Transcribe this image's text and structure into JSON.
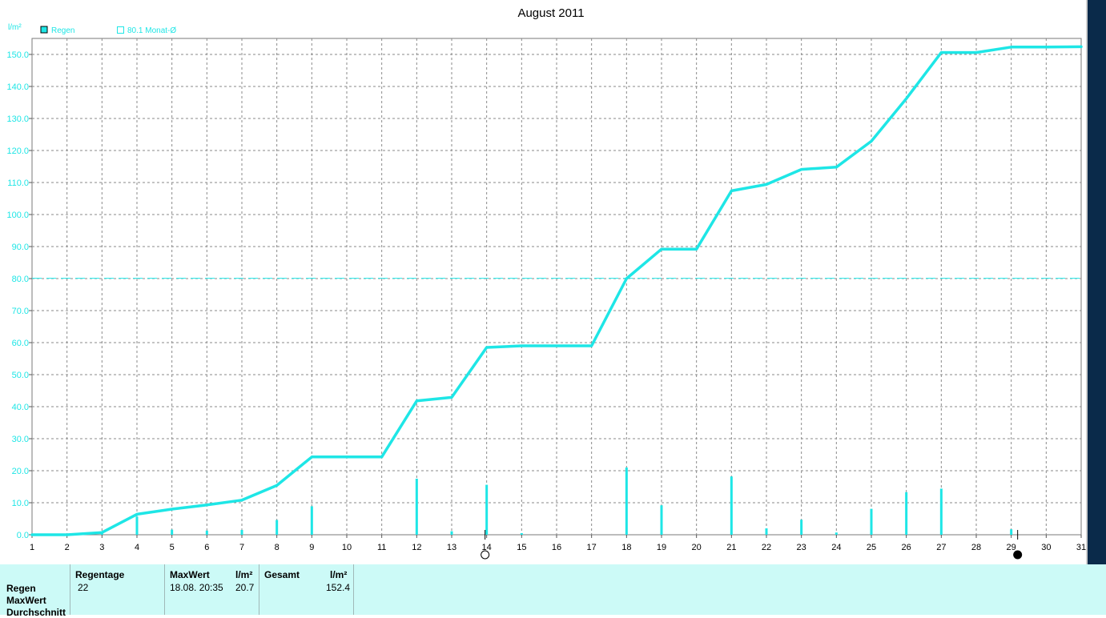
{
  "chart_data": {
    "type": "line",
    "title": "August 2011",
    "ylabel": "l/m²",
    "xlim": [
      1,
      31
    ],
    "ylim": [
      0,
      155
    ],
    "grid": true,
    "legend": [
      {
        "label": "Regen",
        "marker": "filled-square"
      },
      {
        "label": "80.1 Monat-Ø",
        "marker": "open-square"
      }
    ],
    "x_ticks": [
      1,
      2,
      3,
      4,
      5,
      6,
      7,
      8,
      9,
      10,
      11,
      12,
      13,
      14,
      15,
      16,
      17,
      18,
      19,
      20,
      21,
      22,
      23,
      24,
      25,
      26,
      27,
      28,
      29,
      30,
      31
    ],
    "y_ticks": [
      "0.0",
      "10.0",
      "20.0",
      "30.0",
      "40.0",
      "50.0",
      "60.0",
      "70.0",
      "80.0",
      "90.0",
      "100.0",
      "110.0",
      "120.0",
      "130.0",
      "140.0",
      "150.0"
    ],
    "reference_line": {
      "name": "Monat-Ø",
      "value": 80.1
    },
    "cumulative": {
      "name": "Regen",
      "x": [
        1,
        2,
        3,
        4,
        5,
        6,
        7,
        8,
        9,
        10,
        11,
        12,
        13,
        14,
        15,
        16,
        17,
        18,
        19,
        20,
        21,
        22,
        23,
        24,
        25,
        26,
        27,
        28,
        29,
        30,
        31
      ],
      "y": [
        0,
        0,
        0.7,
        6.4,
        8.0,
        9.3,
        10.8,
        15.4,
        24.3,
        24.3,
        24.3,
        41.8,
        42.9,
        58.5,
        59.0,
        59.0,
        59.0,
        80.0,
        89.2,
        89.2,
        107.4,
        109.4,
        114.1,
        114.8,
        122.9,
        136.2,
        150.6,
        150.6,
        152.3,
        152.3,
        152.4
      ]
    },
    "daily_bars": {
      "name": "Regen",
      "x": [
        3,
        4,
        5,
        6,
        7,
        8,
        9,
        12,
        13,
        14,
        15,
        18,
        19,
        21,
        22,
        23,
        24,
        25,
        26,
        27,
        29
      ],
      "y": [
        0.7,
        5.7,
        1.6,
        1.3,
        1.5,
        4.6,
        8.9,
        17.5,
        1.1,
        15.6,
        0.5,
        21.0,
        9.2,
        18.2,
        2.0,
        4.7,
        0.7,
        8.1,
        13.3,
        14.4,
        1.7
      ]
    },
    "moon_phase_markers": [
      {
        "day": 14,
        "phase": "full-moon"
      },
      {
        "day": 29,
        "phase": "new-moon"
      }
    ],
    "colors": {
      "series": "#1ee6e6",
      "grid": "#8a8a8a",
      "axis_text": "#1ee6e6"
    }
  },
  "summary_table": {
    "row_labels": [
      "Regen",
      "MaxWert",
      "Durchschnitt"
    ],
    "regentage_header": "Regentage",
    "regentage_value": "22",
    "maxwert_header": "MaxWert",
    "maxwert_unit": "l/m²",
    "maxwert_time": "18.08.  20:35",
    "maxwert_value": "20.7",
    "gesamt_header": "Gesamt",
    "gesamt_unit": "l/m²",
    "gesamt_value": "152.4"
  }
}
